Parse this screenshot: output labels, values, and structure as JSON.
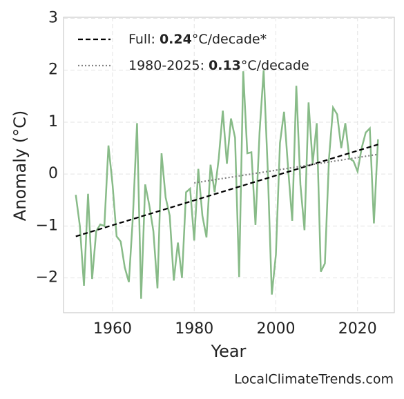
{
  "chart_data": {
    "type": "line",
    "xlabel": "Year",
    "ylabel": "Anomaly (°C)",
    "annotation": "LocalClimateTrends.com",
    "xlim": [
      1948,
      2029
    ],
    "ylim": [
      -2.67,
      3.02
    ],
    "xticks": [
      1960,
      1980,
      2000,
      2020
    ],
    "yticks": [
      {
        "value": -2,
        "label": "−2"
      },
      {
        "value": -1,
        "label": "−1"
      },
      0,
      1,
      2,
      3
    ],
    "grid": true,
    "legend": "upper left",
    "series": [
      {
        "color": "#88bb88",
        "linestyle": "solid",
        "x": [
          1951,
          1952,
          1953,
          1954,
          1955,
          1956,
          1957,
          1958,
          1959,
          1960,
          1961,
          1962,
          1963,
          1964,
          1965,
          1966,
          1967,
          1968,
          1969,
          1970,
          1971,
          1972,
          1973,
          1974,
          1975,
          1976,
          1977,
          1978,
          1979,
          1980,
          1981,
          1982,
          1983,
          1984,
          1985,
          1986,
          1987,
          1988,
          1989,
          1990,
          1991,
          1992,
          1993,
          1994,
          1995,
          1996,
          1997,
          1998,
          1999,
          2000,
          2001,
          2002,
          2003,
          2004,
          2005,
          2006,
          2007,
          2008,
          2009,
          2010,
          2011,
          2012,
          2013,
          2014,
          2015,
          2016,
          2017,
          2018,
          2019,
          2020,
          2021,
          2022,
          2023,
          2024,
          2025
        ],
        "values": [
          -0.4,
          -1.0,
          -2.15,
          -0.38,
          -2.02,
          -1.1,
          -0.97,
          -1.0,
          0.55,
          -0.2,
          -1.2,
          -1.3,
          -1.8,
          -2.08,
          -0.8,
          0.98,
          -2.4,
          -0.2,
          -0.6,
          -1.1,
          -2.2,
          0.4,
          -0.45,
          -0.8,
          -2.05,
          -1.32,
          -2.0,
          -0.35,
          -0.28,
          -1.28,
          0.1,
          -0.8,
          -1.22,
          0.18,
          -0.35,
          0.3,
          1.22,
          0.2,
          1.07,
          0.7,
          -1.98,
          1.98,
          0.4,
          0.42,
          -0.98,
          0.8,
          2.0,
          0.1,
          -2.32,
          -1.55,
          0.6,
          1.2,
          0.1,
          -0.9,
          1.7,
          -0.2,
          -1.08,
          1.38,
          0.2,
          0.98,
          -1.88,
          -1.72,
          0.3,
          1.28,
          1.15,
          0.5,
          0.98,
          0.3,
          0.25,
          0.05,
          0.5,
          0.8,
          0.88,
          -0.95,
          0.67
        ]
      },
      {
        "name": [
          "Full: ",
          "0.24",
          "°C/decade*"
        ],
        "color": "#000000",
        "linestyle": "dashed",
        "x": [
          1951,
          2025
        ],
        "values": [
          -1.2,
          0.57
        ]
      },
      {
        "name": [
          "1980-2025: ",
          "0.13",
          "°C/decade"
        ],
        "color": "#808080",
        "linestyle": "dotted",
        "x": [
          1980,
          2025
        ],
        "values": [
          -0.17,
          0.38
        ]
      }
    ]
  }
}
